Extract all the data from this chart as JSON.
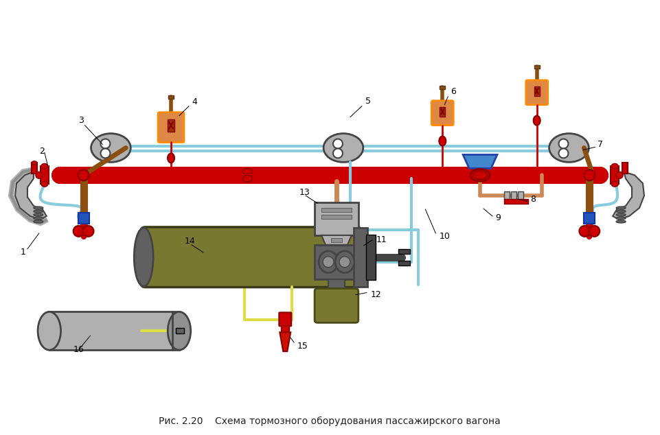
{
  "title": "Рис. 2.20    Схема тормозного оборудования пассажирского вагона",
  "bg_color": "#ffffff",
  "title_fontsize": 10,
  "title_color": "#222222",
  "fig_width": 9.61,
  "fig_height": 6.34
}
